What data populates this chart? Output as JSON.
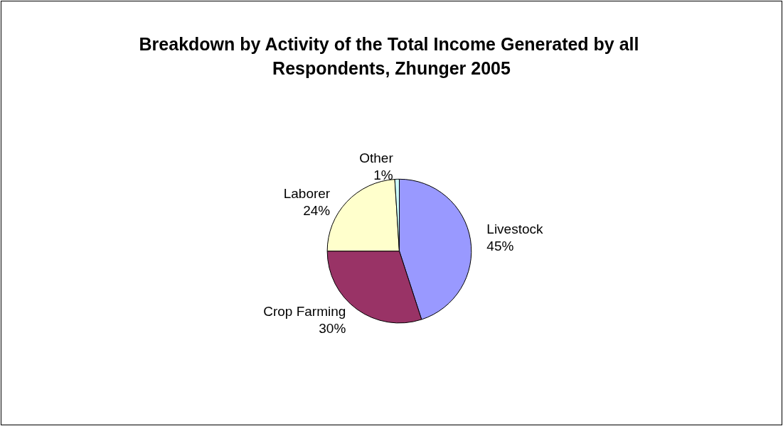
{
  "chart_data": {
    "type": "pie",
    "title": "Breakdown by Activity of the Total Income Generated by all Respondents, Zhunger 2005",
    "categories": [
      "Livestock",
      "Crop Farming",
      "Laborer",
      "Other"
    ],
    "values": [
      45,
      30,
      24,
      1
    ],
    "value_labels": [
      "45%",
      "30%",
      "24%",
      "1%"
    ],
    "colors": [
      "#9999ff",
      "#993366",
      "#ffffcc",
      "#ccffff"
    ],
    "legend": false
  }
}
